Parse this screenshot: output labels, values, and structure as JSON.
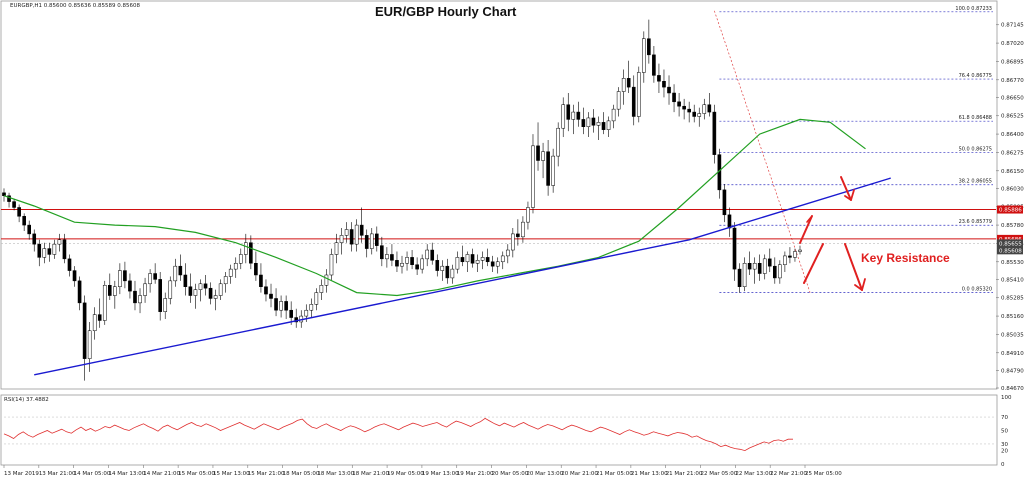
{
  "chart_data": {
    "type": "candlestick",
    "title": "EUR/GBP Hourly Chart",
    "symbol_header": "EURGBP,H1  0.85600 0.85636 0.85589 0.85608",
    "price_axis": {
      "ylim": [
        0.8467,
        0.873
      ],
      "tick_labels": [
        "0.87145",
        "0.87020",
        "0.86895",
        "0.86770",
        "0.86650",
        "0.86525",
        "0.86400",
        "0.86275",
        "0.86150",
        "0.86030",
        "0.85905",
        "0.85780",
        "0.85655",
        "0.85530",
        "0.85410",
        "0.85285",
        "0.85160",
        "0.85035",
        "0.84910",
        "0.84790",
        "0.84670"
      ],
      "tag_labels": [
        {
          "value": 0.85886,
          "text": "0.85886",
          "color": "#d01010"
        },
        {
          "value": 0.85686,
          "text": "0.85686",
          "color": "#d01010"
        },
        {
          "value": 0.85655,
          "text": "0.85655",
          "color": "#444444"
        },
        {
          "value": 0.85608,
          "text": "0.85608",
          "color": "#444444"
        }
      ]
    },
    "time_labels": [
      "13 Mar 2019",
      "13 Mar 21:00",
      "14 Mar 05:00",
      "14 Mar 13:00",
      "14 Mar 21:00",
      "15 Mar 05:00",
      "15 Mar 13:00",
      "15 Mar 21:00",
      "18 Mar 05:00",
      "18 Mar 13:00",
      "18 Mar 21:00",
      "19 Mar 05:00",
      "19 Mar 13:00",
      "19 Mar 21:00",
      "20 Mar 05:00",
      "20 Mar 13:00",
      "20 Mar 21:00",
      "21 Mar 05:00",
      "21 Mar 13:00",
      "21 Mar 21:00",
      "22 Mar 05:00",
      "22 Mar 13:00",
      "22 Mar 21:00",
      "25 Mar 05:00"
    ],
    "candles": [
      [
        0.86,
        0.8603,
        0.8594,
        0.8598
      ],
      [
        0.8598,
        0.86,
        0.859,
        0.8594
      ],
      [
        0.8594,
        0.8596,
        0.8588,
        0.859
      ],
      [
        0.859,
        0.8592,
        0.858,
        0.8584
      ],
      [
        0.8584,
        0.8586,
        0.8574,
        0.8578
      ],
      [
        0.8578,
        0.8581,
        0.8568,
        0.8572
      ],
      [
        0.8572,
        0.8575,
        0.856,
        0.8565
      ],
      [
        0.8565,
        0.8568,
        0.855,
        0.8556
      ],
      [
        0.8556,
        0.8566,
        0.8552,
        0.8562
      ],
      [
        0.8562,
        0.8566,
        0.8553,
        0.8558
      ],
      [
        0.8558,
        0.8568,
        0.8555,
        0.8565
      ],
      [
        0.8565,
        0.8572,
        0.856,
        0.8568
      ],
      [
        0.8568,
        0.8572,
        0.8552,
        0.8555
      ],
      [
        0.8555,
        0.8558,
        0.8543,
        0.8547
      ],
      [
        0.8547,
        0.855,
        0.8536,
        0.854
      ],
      [
        0.854,
        0.8543,
        0.852,
        0.8525
      ],
      [
        0.8525,
        0.853,
        0.8472,
        0.8487
      ],
      [
        0.8487,
        0.8512,
        0.8478,
        0.8506
      ],
      [
        0.8506,
        0.8522,
        0.85,
        0.8517
      ],
      [
        0.8517,
        0.8528,
        0.8508,
        0.8513
      ],
      [
        0.8513,
        0.854,
        0.851,
        0.8537
      ],
      [
        0.8537,
        0.8545,
        0.8527,
        0.853
      ],
      [
        0.853,
        0.854,
        0.8521,
        0.8536
      ],
      [
        0.8536,
        0.8552,
        0.8531,
        0.8547
      ],
      [
        0.8547,
        0.8553,
        0.8535,
        0.854
      ],
      [
        0.854,
        0.8545,
        0.8528,
        0.8533
      ],
      [
        0.8533,
        0.854,
        0.852,
        0.8525
      ],
      [
        0.8525,
        0.8535,
        0.8518,
        0.853
      ],
      [
        0.853,
        0.8542,
        0.8525,
        0.8538
      ],
      [
        0.8538,
        0.8548,
        0.8532,
        0.8545
      ],
      [
        0.8545,
        0.8552,
        0.8538,
        0.8541
      ],
      [
        0.8541,
        0.8546,
        0.8513,
        0.8519
      ],
      [
        0.8519,
        0.8532,
        0.8514,
        0.8528
      ],
      [
        0.8528,
        0.8543,
        0.8524,
        0.854
      ],
      [
        0.854,
        0.8555,
        0.8536,
        0.855
      ],
      [
        0.855,
        0.8558,
        0.854,
        0.8544
      ],
      [
        0.8544,
        0.8552,
        0.853,
        0.8536
      ],
      [
        0.8536,
        0.8545,
        0.8525,
        0.853
      ],
      [
        0.853,
        0.8538,
        0.8521,
        0.8534
      ],
      [
        0.8534,
        0.8541,
        0.8526,
        0.8538
      ],
      [
        0.8538,
        0.8544,
        0.853,
        0.8535
      ],
      [
        0.8535,
        0.8539,
        0.8524,
        0.8528
      ],
      [
        0.8528,
        0.8534,
        0.852,
        0.853
      ],
      [
        0.853,
        0.8541,
        0.8527,
        0.8538
      ],
      [
        0.8538,
        0.8546,
        0.8532,
        0.8543
      ],
      [
        0.8543,
        0.8551,
        0.8538,
        0.8548
      ],
      [
        0.8548,
        0.8556,
        0.8542,
        0.8552
      ],
      [
        0.8552,
        0.8562,
        0.8548,
        0.8558
      ],
      [
        0.8558,
        0.8572,
        0.8552,
        0.8566
      ],
      [
        0.8566,
        0.8571,
        0.8548,
        0.8552
      ],
      [
        0.8552,
        0.856,
        0.854,
        0.8544
      ],
      [
        0.8544,
        0.8552,
        0.8532,
        0.8536
      ],
      [
        0.8536,
        0.8541,
        0.8526,
        0.8531
      ],
      [
        0.8531,
        0.8538,
        0.8522,
        0.8528
      ],
      [
        0.8528,
        0.8535,
        0.8516,
        0.852
      ],
      [
        0.852,
        0.853,
        0.8515,
        0.8526
      ],
      [
        0.8526,
        0.853,
        0.8514,
        0.852
      ],
      [
        0.852,
        0.8526,
        0.851,
        0.8515
      ],
      [
        0.8515,
        0.8521,
        0.8508,
        0.8512
      ],
      [
        0.8512,
        0.852,
        0.8508,
        0.8516
      ],
      [
        0.8516,
        0.8524,
        0.8512,
        0.852
      ],
      [
        0.852,
        0.8528,
        0.8515,
        0.8524
      ],
      [
        0.8524,
        0.8535,
        0.852,
        0.8532
      ],
      [
        0.8532,
        0.8541,
        0.8527,
        0.8537
      ],
      [
        0.8537,
        0.8548,
        0.8532,
        0.8544
      ],
      [
        0.8544,
        0.8562,
        0.854,
        0.8558
      ],
      [
        0.8558,
        0.8572,
        0.8552,
        0.8566
      ],
      [
        0.8566,
        0.8576,
        0.8558,
        0.8571
      ],
      [
        0.8571,
        0.858,
        0.8566,
        0.8575
      ],
      [
        0.8575,
        0.858,
        0.856,
        0.8565
      ],
      [
        0.8565,
        0.8582,
        0.856,
        0.8578
      ],
      [
        0.8578,
        0.859,
        0.8566,
        0.8571
      ],
      [
        0.8571,
        0.8575,
        0.8556,
        0.8562
      ],
      [
        0.8562,
        0.8576,
        0.8558,
        0.8572
      ],
      [
        0.8572,
        0.8577,
        0.856,
        0.8564
      ],
      [
        0.8564,
        0.857,
        0.855,
        0.8555
      ],
      [
        0.8555,
        0.8563,
        0.8549,
        0.8558
      ],
      [
        0.8558,
        0.8565,
        0.855,
        0.8554
      ],
      [
        0.8554,
        0.856,
        0.8546,
        0.855
      ],
      [
        0.855,
        0.8557,
        0.8545,
        0.8552
      ],
      [
        0.8552,
        0.856,
        0.8547,
        0.8556
      ],
      [
        0.8556,
        0.8561,
        0.8548,
        0.8551
      ],
      [
        0.8551,
        0.8556,
        0.8544,
        0.8548
      ],
      [
        0.8548,
        0.8558,
        0.8545,
        0.8555
      ],
      [
        0.8555,
        0.8565,
        0.855,
        0.8561
      ],
      [
        0.8561,
        0.8566,
        0.8551,
        0.8554
      ],
      [
        0.8554,
        0.8558,
        0.8543,
        0.8547
      ],
      [
        0.8547,
        0.8554,
        0.854,
        0.855
      ],
      [
        0.855,
        0.8555,
        0.8538,
        0.8542
      ],
      [
        0.8542,
        0.8551,
        0.8538,
        0.8548
      ],
      [
        0.8548,
        0.856,
        0.8545,
        0.8556
      ],
      [
        0.8556,
        0.8564,
        0.855,
        0.8553
      ],
      [
        0.8553,
        0.856,
        0.8546,
        0.8558
      ],
      [
        0.8558,
        0.8562,
        0.8549,
        0.8552
      ],
      [
        0.8552,
        0.8558,
        0.8546,
        0.8554
      ],
      [
        0.8554,
        0.856,
        0.8548,
        0.8556
      ],
      [
        0.8556,
        0.8562,
        0.855,
        0.8553
      ],
      [
        0.8553,
        0.8557,
        0.8546,
        0.855
      ],
      [
        0.855,
        0.8556,
        0.8545,
        0.8553
      ],
      [
        0.8553,
        0.856,
        0.8548,
        0.8557
      ],
      [
        0.8557,
        0.8565,
        0.8552,
        0.8561
      ],
      [
        0.8561,
        0.8576,
        0.8556,
        0.8572
      ],
      [
        0.8572,
        0.8582,
        0.8564,
        0.857
      ],
      [
        0.857,
        0.8584,
        0.8566,
        0.858
      ],
      [
        0.858,
        0.8594,
        0.8575,
        0.859
      ],
      [
        0.859,
        0.864,
        0.8586,
        0.8632
      ],
      [
        0.8632,
        0.8648,
        0.8615,
        0.8622
      ],
      [
        0.8622,
        0.8634,
        0.861,
        0.8628
      ],
      [
        0.8628,
        0.8636,
        0.8598,
        0.8605
      ],
      [
        0.8605,
        0.863,
        0.86,
        0.8625
      ],
      [
        0.8625,
        0.8648,
        0.8618,
        0.8644
      ],
      [
        0.8644,
        0.8665,
        0.8638,
        0.866
      ],
      [
        0.866,
        0.8668,
        0.8642,
        0.865
      ],
      [
        0.865,
        0.866,
        0.864,
        0.8655
      ],
      [
        0.8655,
        0.8662,
        0.8645,
        0.865
      ],
      [
        0.865,
        0.8658,
        0.864,
        0.8645
      ],
      [
        0.8645,
        0.8655,
        0.8638,
        0.8651
      ],
      [
        0.8651,
        0.8657,
        0.8641,
        0.8646
      ],
      [
        0.8646,
        0.8652,
        0.8636,
        0.8648
      ],
      [
        0.8648,
        0.8655,
        0.864,
        0.8643
      ],
      [
        0.8643,
        0.8652,
        0.8638,
        0.8649
      ],
      [
        0.8649,
        0.866,
        0.8644,
        0.8657
      ],
      [
        0.8657,
        0.8672,
        0.8652,
        0.8669
      ],
      [
        0.8669,
        0.8684,
        0.866,
        0.8678
      ],
      [
        0.8678,
        0.869,
        0.8668,
        0.8672
      ],
      [
        0.8672,
        0.868,
        0.8646,
        0.8652
      ],
      [
        0.8652,
        0.8686,
        0.8648,
        0.8682
      ],
      [
        0.8682,
        0.871,
        0.8675,
        0.8705
      ],
      [
        0.8705,
        0.8718,
        0.8688,
        0.8694
      ],
      [
        0.8694,
        0.87,
        0.8675,
        0.868
      ],
      [
        0.868,
        0.8688,
        0.8668,
        0.8676
      ],
      [
        0.8676,
        0.8684,
        0.8665,
        0.8672
      ],
      [
        0.8672,
        0.868,
        0.866,
        0.8668
      ],
      [
        0.8668,
        0.8674,
        0.8655,
        0.8662
      ],
      [
        0.8662,
        0.8668,
        0.8652,
        0.8659
      ],
      [
        0.8659,
        0.8664,
        0.865,
        0.8657
      ],
      [
        0.8657,
        0.8662,
        0.8648,
        0.8655
      ],
      [
        0.8655,
        0.866,
        0.8648,
        0.8652
      ],
      [
        0.8652,
        0.8658,
        0.8645,
        0.8654
      ],
      [
        0.8654,
        0.8664,
        0.865,
        0.866
      ],
      [
        0.866,
        0.8668,
        0.8652,
        0.8655
      ],
      [
        0.8655,
        0.866,
        0.862,
        0.8626
      ],
      [
        0.8626,
        0.863,
        0.8596,
        0.8602
      ],
      [
        0.8602,
        0.8606,
        0.858,
        0.8585
      ],
      [
        0.8585,
        0.859,
        0.857,
        0.8576
      ],
      [
        0.8576,
        0.858,
        0.854,
        0.8548
      ],
      [
        0.8548,
        0.8552,
        0.8532,
        0.8536
      ],
      [
        0.8536,
        0.8556,
        0.8533,
        0.8552
      ],
      [
        0.8552,
        0.856,
        0.8544,
        0.8548
      ],
      [
        0.8548,
        0.8556,
        0.8538,
        0.8552
      ],
      [
        0.8552,
        0.8558,
        0.854,
        0.8545
      ],
      [
        0.8545,
        0.8558,
        0.8541,
        0.8555
      ],
      [
        0.8555,
        0.8562,
        0.8546,
        0.855
      ],
      [
        0.855,
        0.8556,
        0.8538,
        0.8542
      ],
      [
        0.8542,
        0.8554,
        0.8538,
        0.8551
      ],
      [
        0.8551,
        0.856,
        0.8546,
        0.8557
      ],
      [
        0.8557,
        0.8563,
        0.8552,
        0.8556
      ],
      [
        0.8556,
        0.8562,
        0.8553,
        0.856
      ],
      [
        0.856,
        0.8564,
        0.8558,
        0.8561
      ]
    ],
    "ma_points": [
      [
        0,
        0.8598
      ],
      [
        6,
        0.8591
      ],
      [
        14,
        0.858
      ],
      [
        22,
        0.8578
      ],
      [
        30,
        0.8577
      ],
      [
        38,
        0.8573
      ],
      [
        46,
        0.8566
      ],
      [
        54,
        0.8556
      ],
      [
        62,
        0.8545
      ],
      [
        70,
        0.8532
      ],
      [
        78,
        0.853
      ],
      [
        86,
        0.8534
      ],
      [
        94,
        0.854
      ],
      [
        102,
        0.8545
      ],
      [
        110,
        0.855
      ],
      [
        118,
        0.8556
      ],
      [
        126,
        0.8567
      ],
      [
        134,
        0.859
      ],
      [
        142,
        0.8615
      ],
      [
        150,
        0.864
      ],
      [
        158,
        0.865
      ],
      [
        164,
        0.8648
      ],
      [
        171,
        0.863
      ]
    ],
    "trendline": {
      "points": [
        [
          6,
          0.8476
        ],
        [
          136,
          0.8568
        ],
        [
          176,
          0.861
        ]
      ],
      "color": "#1a1ad0"
    },
    "resistance_lines": [
      {
        "value": 0.85886,
        "color": "#d01010"
      },
      {
        "value": 0.85686,
        "color": "#d01010"
      }
    ],
    "current_price": 0.85608,
    "fibonacci": {
      "start_bar": 142,
      "end_bar": 219,
      "levels": [
        {
          "value": 0.87233,
          "label": "100.0 0.87233"
        },
        {
          "value": 0.86775,
          "label": "76.4 0.86775"
        },
        {
          "value": 0.86488,
          "label": "61.8 0.86488"
        },
        {
          "value": 0.86275,
          "label": "50.0 0.86275"
        },
        {
          "value": 0.86055,
          "label": "38.2 0.86055"
        },
        {
          "value": 0.85779,
          "label": "23.6 0.85779"
        },
        {
          "value": 0.8532,
          "label": "0.0 0.85320"
        }
      ]
    },
    "fib_diagonal": [
      [
        141,
        0.8724
      ],
      [
        160,
        0.8532
      ]
    ],
    "annotation": {
      "text": "Key Resistance",
      "color": "#e02020"
    },
    "rsi": {
      "label": "RSI(14) 37.4882",
      "ylim": [
        0,
        100
      ],
      "tick_labels": [
        "100",
        "70",
        "50",
        "30",
        "20",
        "0"
      ],
      "levels": [
        70,
        30
      ],
      "values": [
        45,
        42,
        38,
        44,
        48,
        43,
        40,
        44,
        47,
        50,
        46,
        49,
        52,
        48,
        46,
        51,
        55,
        50,
        53,
        49,
        52,
        56,
        54,
        58,
        55,
        52,
        50,
        54,
        57,
        60,
        56,
        53,
        49,
        55,
        58,
        54,
        51,
        55,
        59,
        62,
        58,
        56,
        60,
        57,
        54,
        50,
        53,
        56,
        59,
        62,
        58,
        55,
        52,
        56,
        60,
        57,
        54,
        51,
        55,
        58,
        61,
        65,
        67,
        60,
        55,
        53,
        57,
        60,
        56,
        53,
        50,
        54,
        57,
        55,
        52,
        48,
        51,
        55,
        58,
        60,
        57,
        54,
        51,
        55,
        58,
        61,
        59,
        56,
        58,
        60,
        62,
        58,
        55,
        60,
        64,
        62,
        59,
        56,
        60,
        63,
        68,
        64,
        60,
        57,
        61,
        58,
        55,
        59,
        62,
        58,
        55,
        52,
        56,
        59,
        57,
        54,
        51,
        55,
        58,
        56,
        53,
        50,
        48,
        52,
        55,
        53,
        50,
        47,
        44,
        48,
        51,
        48,
        46,
        43,
        45,
        48,
        46,
        44,
        42,
        45,
        47,
        46,
        44,
        40,
        42,
        38,
        35,
        33,
        30,
        26,
        28,
        25,
        23,
        22,
        20,
        24,
        27,
        30,
        33,
        31,
        35,
        36,
        34,
        37,
        37
      ]
    }
  }
}
